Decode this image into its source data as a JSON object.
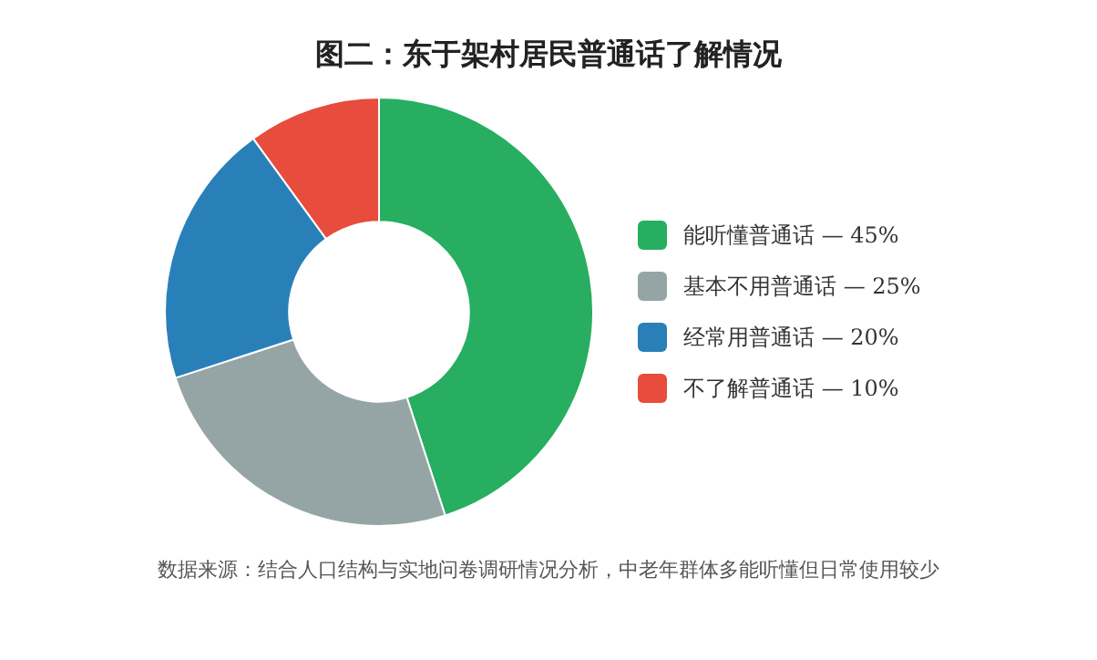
{
  "chart_data": {
    "type": "donut",
    "title": "图二：东于架村居民普通话了解情况",
    "categories": [
      "能听懂普通话 — 45%",
      "基本不用普通话 — 25%",
      "经常用普通话 — 20%",
      "不了解普通话 — 10%"
    ],
    "values": [
      45,
      25,
      20,
      10
    ],
    "colors": [
      "#27ae60",
      "#95a5a6",
      "#2980b9",
      "#e74c3c"
    ],
    "legend": "right",
    "annotations": [
      "数据来源：结合人口结构与实地问卷调研情况分析，中老年群体多能听懂但日常使用较少"
    ]
  }
}
